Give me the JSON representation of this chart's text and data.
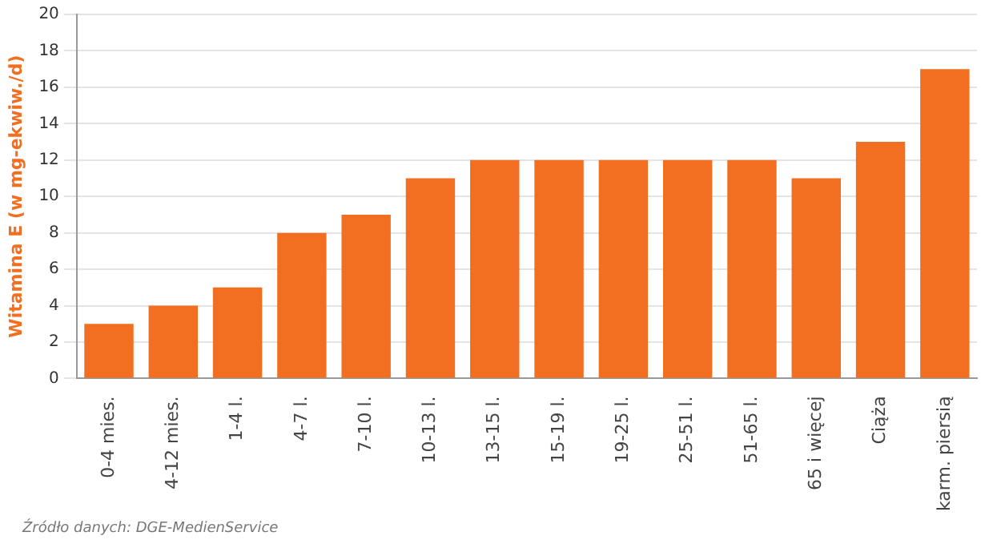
{
  "chart_data": {
    "type": "bar",
    "ylabel": "Witamina E (w mg-ekwiw./d)",
    "categories": [
      "0-4 mies.",
      "4-12 mies.",
      "1-4 l.",
      "4-7 l.",
      "7-10 l.",
      "10-13 l.",
      "13-15 l.",
      "15-19 l.",
      "19-25 l.",
      "25-51 l.",
      "51-65 l.",
      "65 i więcej",
      "Ciąża",
      "karm. piersią"
    ],
    "values": [
      3,
      4,
      5,
      8,
      9,
      11,
      12,
      12,
      12,
      12,
      12,
      11,
      13,
      17
    ],
    "color": "#f26f21",
    "ylim": [
      0,
      20
    ],
    "yticks": [
      0,
      2,
      4,
      6,
      8,
      10,
      12,
      14,
      16,
      18,
      20
    ],
    "grid": "y",
    "legend": false,
    "annotations": [
      "Źródło danych: DGE-MedienService"
    ]
  }
}
